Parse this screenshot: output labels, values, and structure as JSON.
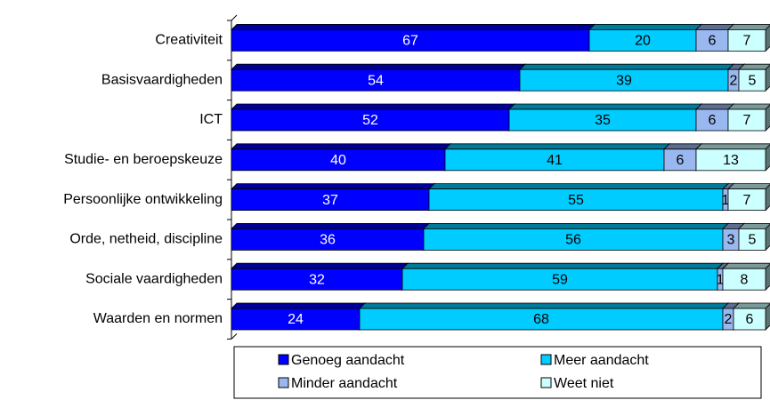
{
  "chart_data": {
    "type": "stacked_bar_horizontal",
    "categories": [
      "Creativiteit",
      "Basisvaardigheden",
      "ICT",
      "Studie- en beroepskeuze",
      "Persoonlijke ontwikkeling",
      "Orde, netheid, discipline",
      "Sociale vaardigheden",
      "Waarden en normen"
    ],
    "series": [
      {
        "name": "Genoeg aandacht",
        "color": "#0000ff",
        "values": [
          67,
          54,
          52,
          40,
          37,
          36,
          32,
          24
        ]
      },
      {
        "name": "Meer aandacht",
        "color": "#00ccff",
        "values": [
          20,
          39,
          35,
          41,
          55,
          56,
          59,
          68
        ]
      },
      {
        "name": "Minder aandacht",
        "color": "#99b8f0",
        "values": [
          6,
          2,
          6,
          6,
          1,
          3,
          1,
          2
        ]
      },
      {
        "name": "Weet niet",
        "color": "#ccffff",
        "values": [
          7,
          5,
          7,
          13,
          7,
          5,
          8,
          6
        ]
      }
    ],
    "legend": "bottom"
  }
}
